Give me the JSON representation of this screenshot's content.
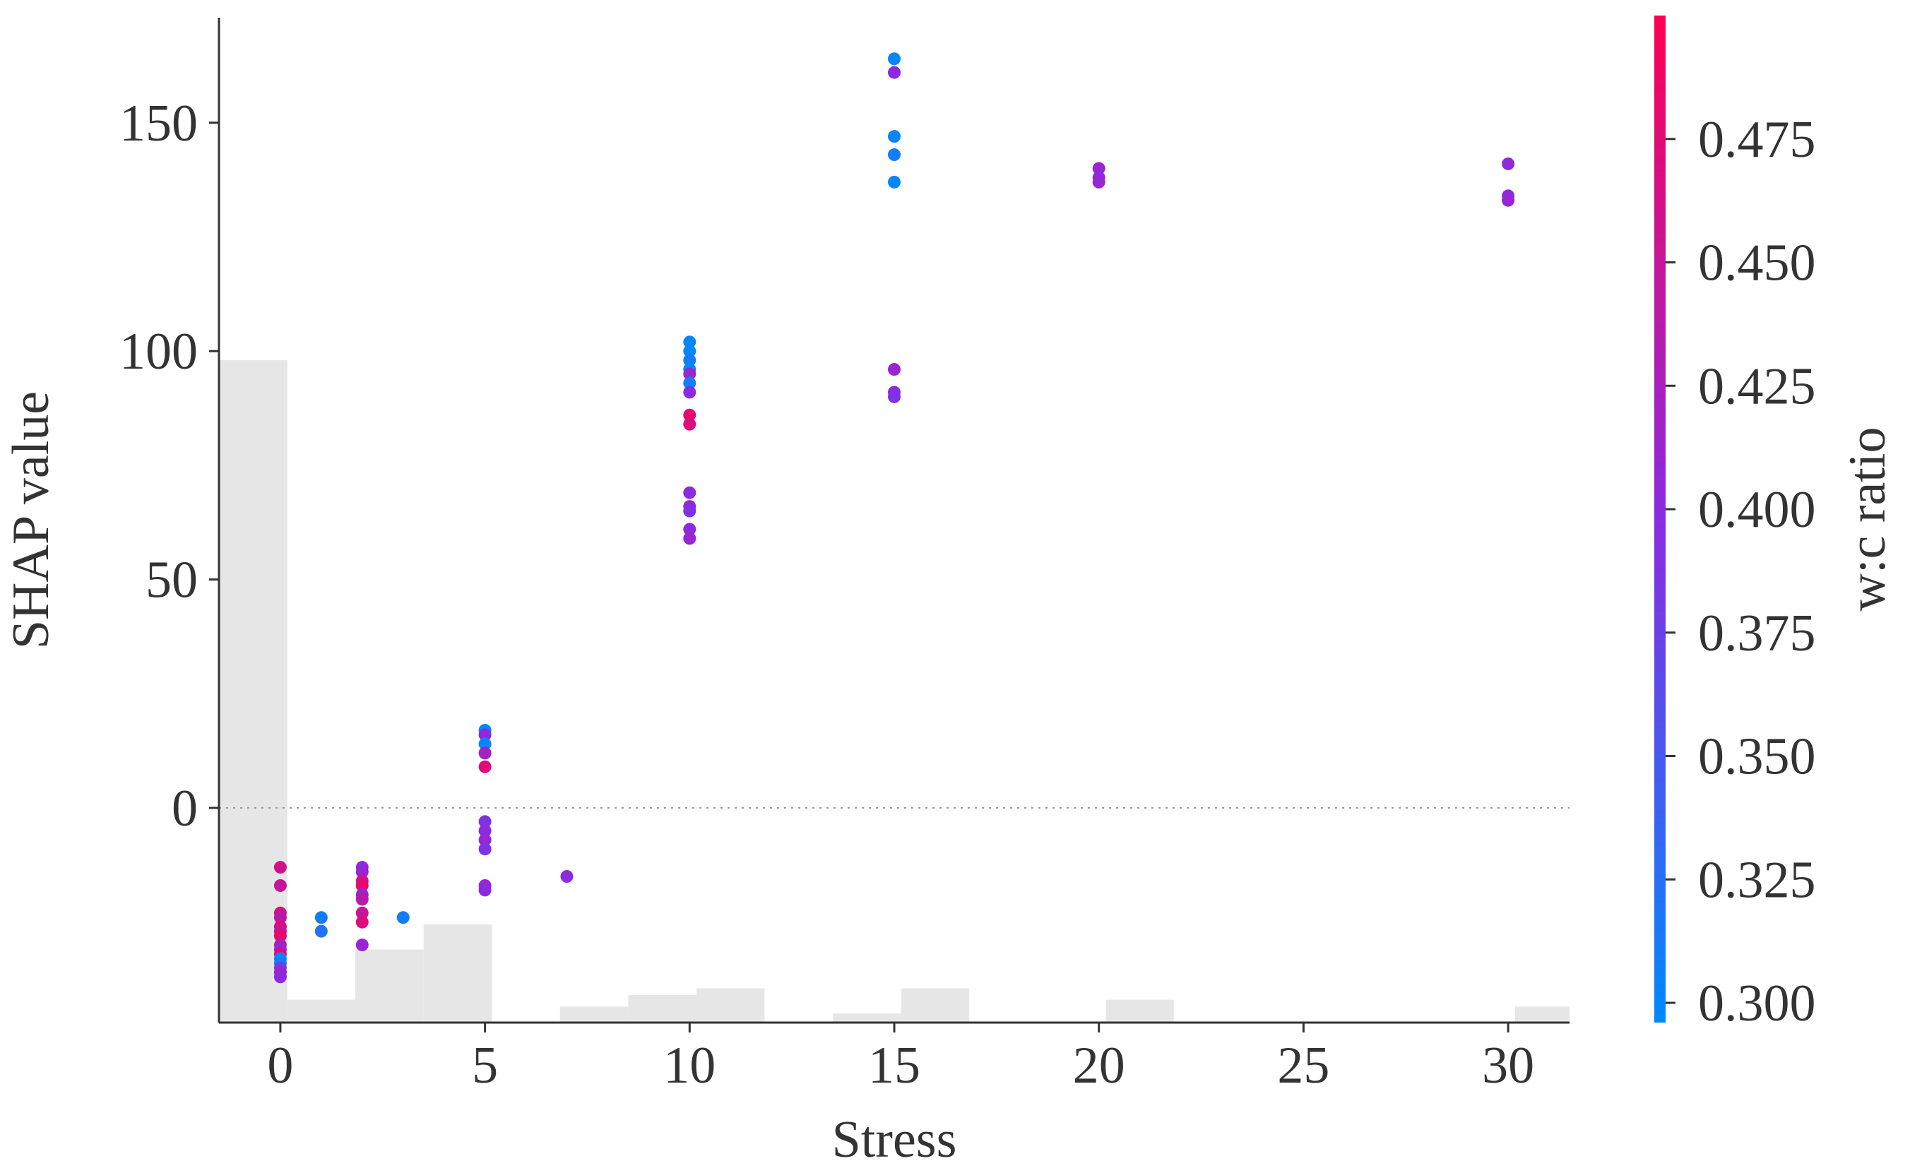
{
  "chart_data": {
    "type": "scatter",
    "title": "",
    "xlabel": "Stress",
    "ylabel": "SHAP value",
    "xlim": [
      -1.5,
      31.5
    ],
    "ylim": [
      -47,
      173
    ],
    "x_ticks": [
      0,
      5,
      10,
      15,
      20,
      25,
      30
    ],
    "y_ticks": [
      0,
      50,
      100,
      150
    ],
    "zero_line": true,
    "grid": false,
    "colorbar": {
      "label": "w:c ratio",
      "range": [
        0.296,
        0.5
      ],
      "ticks": [
        "0.300",
        "0.325",
        "0.350",
        "0.375",
        "0.400",
        "0.425",
        "0.450",
        "0.475"
      ],
      "colors": {
        "low": "#008afb",
        "mid": "#8a2be2",
        "high": "#ff0052"
      }
    },
    "histogram": {
      "color": "#e6e6e6",
      "bins": [
        {
          "x0": -1.5,
          "x1": 0.17,
          "height": 145
        },
        {
          "x0": 0.17,
          "x1": 1.83,
          "height": 5
        },
        {
          "x0": 1.83,
          "x1": 3.5,
          "height": 16
        },
        {
          "x0": 3.5,
          "x1": 5.17,
          "height": 21.5
        },
        {
          "x0": 6.83,
          "x1": 8.5,
          "height": 3.5
        },
        {
          "x0": 8.5,
          "x1": 10.17,
          "height": 6
        },
        {
          "x0": 10.17,
          "x1": 11.83,
          "height": 7.5
        },
        {
          "x0": 13.5,
          "x1": 15.17,
          "height": 2
        },
        {
          "x0": 15.17,
          "x1": 16.83,
          "height": 7.5
        },
        {
          "x0": 20.17,
          "x1": 21.83,
          "height": 5
        },
        {
          "x0": 30.17,
          "x1": 31.5,
          "height": 3.5
        }
      ]
    },
    "points": [
      {
        "x": 0,
        "y": -13,
        "c": 0.46
      },
      {
        "x": 0,
        "y": -17,
        "c": 0.45
      },
      {
        "x": 0,
        "y": -23,
        "c": 0.46
      },
      {
        "x": 0,
        "y": -24,
        "c": 0.44
      },
      {
        "x": 0,
        "y": -26,
        "c": 0.47
      },
      {
        "x": 0,
        "y": -27,
        "c": 0.45
      },
      {
        "x": 0,
        "y": -28,
        "c": 0.48
      },
      {
        "x": 0,
        "y": -30,
        "c": 0.43
      },
      {
        "x": 0,
        "y": -31,
        "c": 0.41
      },
      {
        "x": 0,
        "y": -32,
        "c": 0.47
      },
      {
        "x": 0,
        "y": -33,
        "c": 0.3
      },
      {
        "x": 0,
        "y": -34,
        "c": 0.31
      },
      {
        "x": 0,
        "y": -35,
        "c": 0.38
      },
      {
        "x": 0,
        "y": -36,
        "c": 0.41
      },
      {
        "x": 0,
        "y": -37,
        "c": 0.4
      },
      {
        "x": 1,
        "y": -24,
        "c": 0.31
      },
      {
        "x": 1,
        "y": -27,
        "c": 0.32
      },
      {
        "x": 2,
        "y": -13,
        "c": 0.4
      },
      {
        "x": 2,
        "y": -14,
        "c": 0.41
      },
      {
        "x": 2,
        "y": -16,
        "c": 0.46
      },
      {
        "x": 2,
        "y": -17,
        "c": 0.48
      },
      {
        "x": 2,
        "y": -19,
        "c": 0.41
      },
      {
        "x": 2,
        "y": -20,
        "c": 0.44
      },
      {
        "x": 2,
        "y": -23,
        "c": 0.45
      },
      {
        "x": 2,
        "y": -25,
        "c": 0.47
      },
      {
        "x": 2,
        "y": -30,
        "c": 0.41
      },
      {
        "x": 3,
        "y": -24,
        "c": 0.31
      },
      {
        "x": 5,
        "y": 17,
        "c": 0.3
      },
      {
        "x": 5,
        "y": 16,
        "c": 0.4
      },
      {
        "x": 5,
        "y": 14,
        "c": 0.3
      },
      {
        "x": 5,
        "y": 12,
        "c": 0.42
      },
      {
        "x": 5,
        "y": 9,
        "c": 0.47
      },
      {
        "x": 5,
        "y": -3,
        "c": 0.39
      },
      {
        "x": 5,
        "y": -5,
        "c": 0.4
      },
      {
        "x": 5,
        "y": -7,
        "c": 0.41
      },
      {
        "x": 5,
        "y": -9,
        "c": 0.39
      },
      {
        "x": 5,
        "y": -17,
        "c": 0.41
      },
      {
        "x": 5,
        "y": -18,
        "c": 0.4
      },
      {
        "x": 7,
        "y": -15,
        "c": 0.4
      },
      {
        "x": 10,
        "y": 102,
        "c": 0.3
      },
      {
        "x": 10,
        "y": 100,
        "c": 0.3
      },
      {
        "x": 10,
        "y": 98,
        "c": 0.31
      },
      {
        "x": 10,
        "y": 96,
        "c": 0.3
      },
      {
        "x": 10,
        "y": 95,
        "c": 0.41
      },
      {
        "x": 10,
        "y": 93,
        "c": 0.31
      },
      {
        "x": 10,
        "y": 91,
        "c": 0.4
      },
      {
        "x": 10,
        "y": 86,
        "c": 0.48
      },
      {
        "x": 10,
        "y": 84,
        "c": 0.47
      },
      {
        "x": 10,
        "y": 69,
        "c": 0.4
      },
      {
        "x": 10,
        "y": 66,
        "c": 0.41
      },
      {
        "x": 10,
        "y": 65,
        "c": 0.39
      },
      {
        "x": 10,
        "y": 61,
        "c": 0.4
      },
      {
        "x": 10,
        "y": 59,
        "c": 0.41
      },
      {
        "x": 15,
        "y": 164,
        "c": 0.3
      },
      {
        "x": 15,
        "y": 161,
        "c": 0.4
      },
      {
        "x": 15,
        "y": 147,
        "c": 0.3
      },
      {
        "x": 15,
        "y": 143,
        "c": 0.31
      },
      {
        "x": 15,
        "y": 137,
        "c": 0.3
      },
      {
        "x": 15,
        "y": 96,
        "c": 0.41
      },
      {
        "x": 15,
        "y": 91,
        "c": 0.4
      },
      {
        "x": 15,
        "y": 90,
        "c": 0.39
      },
      {
        "x": 20,
        "y": 140,
        "c": 0.41
      },
      {
        "x": 20,
        "y": 138,
        "c": 0.4
      },
      {
        "x": 20,
        "y": 137,
        "c": 0.41
      },
      {
        "x": 30,
        "y": 141,
        "c": 0.4
      },
      {
        "x": 30,
        "y": 134,
        "c": 0.4
      },
      {
        "x": 30,
        "y": 133,
        "c": 0.41
      }
    ]
  }
}
